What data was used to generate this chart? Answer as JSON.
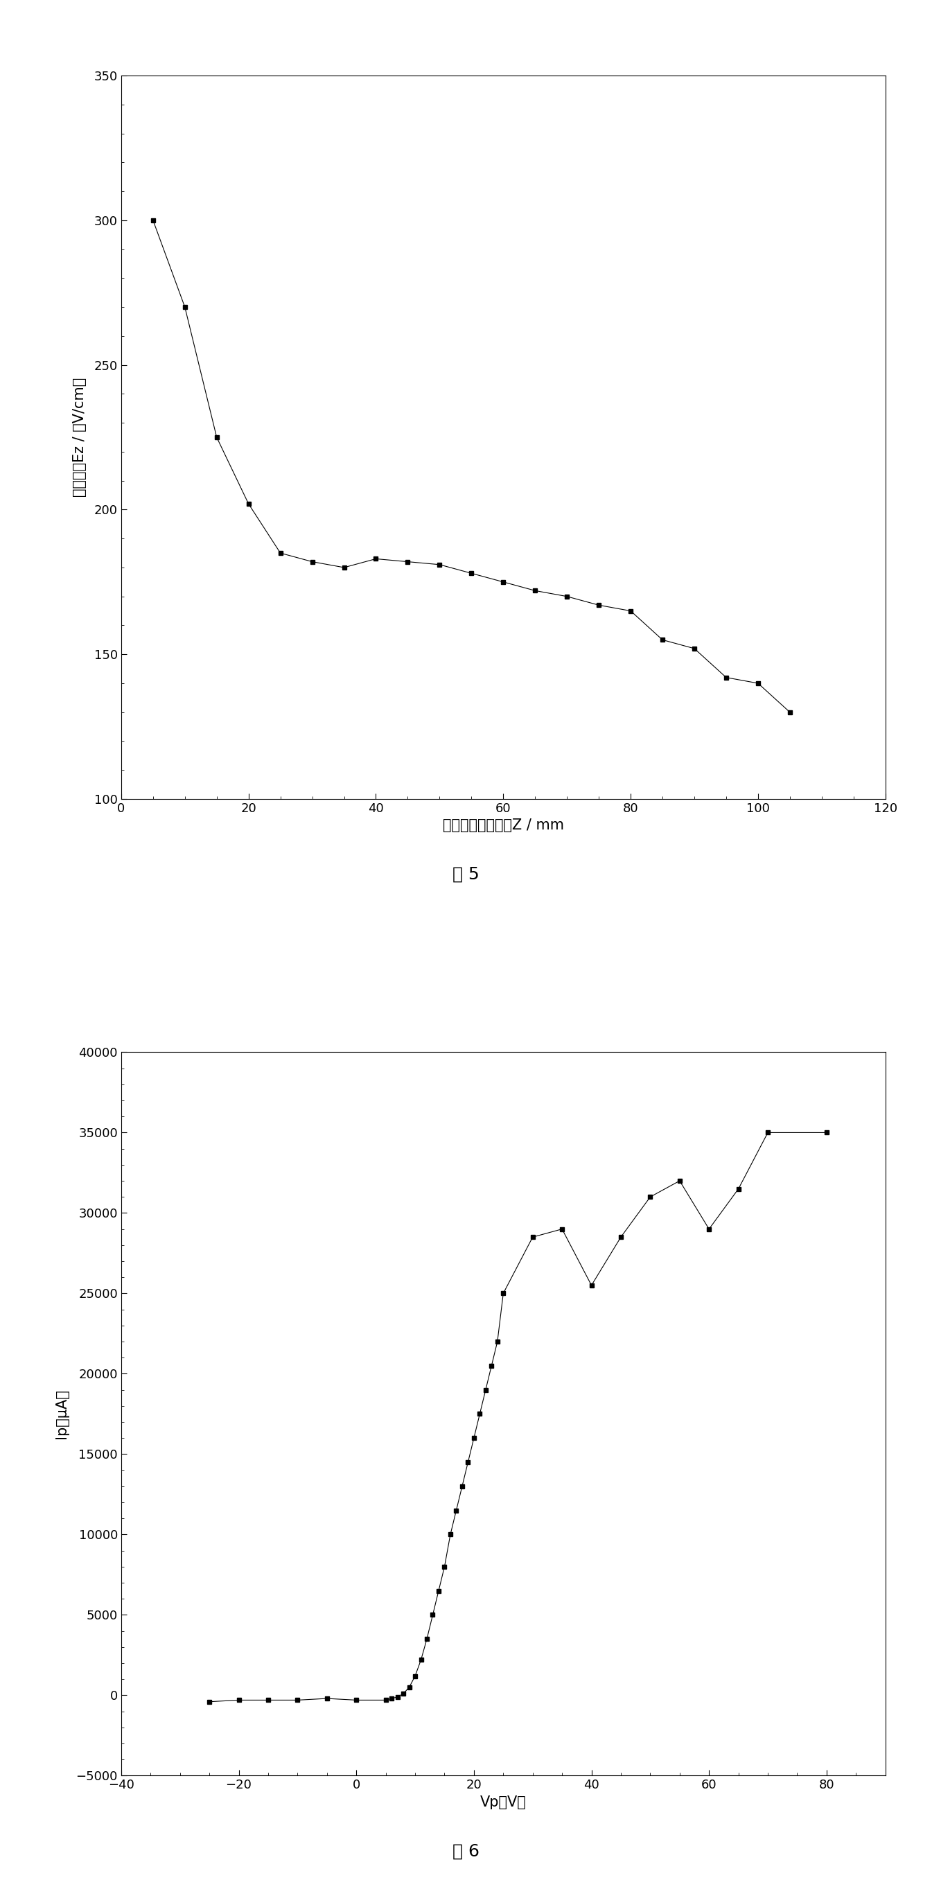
{
  "fig5": {
    "x": [
      5,
      10,
      15,
      20,
      25,
      30,
      35,
      40,
      45,
      50,
      55,
      60,
      65,
      70,
      75,
      80,
      85,
      90,
      95,
      100,
      105
    ],
    "y": [
      300,
      270,
      225,
      202,
      185,
      182,
      180,
      183,
      182,
      181,
      178,
      175,
      172,
      170,
      167,
      165,
      155,
      152,
      142,
      140,
      130
    ],
    "xlabel": "陶瓷窗正下方距离Z / mm",
    "ylabel": "电场强度Ez / （V/cm）",
    "xlim": [
      0,
      120
    ],
    "ylim": [
      100,
      350
    ],
    "xticks": [
      0,
      20,
      40,
      60,
      80,
      100,
      120
    ],
    "yticks": [
      100,
      150,
      200,
      250,
      300,
      350
    ],
    "caption": "图 5"
  },
  "fig6": {
    "x": [
      -25,
      -20,
      -15,
      -10,
      -5,
      0,
      5,
      6,
      7,
      8,
      9,
      10,
      11,
      12,
      13,
      14,
      15,
      16,
      17,
      18,
      19,
      20,
      21,
      22,
      23,
      24,
      25,
      30,
      35,
      40,
      45,
      50,
      55,
      60,
      65,
      70,
      80
    ],
    "y": [
      -400,
      -300,
      -300,
      -300,
      -200,
      -300,
      -300,
      -200,
      -100,
      100,
      500,
      1200,
      2200,
      3500,
      5000,
      6500,
      8000,
      10000,
      11500,
      13000,
      14500,
      16000,
      17500,
      19000,
      20500,
      22000,
      25000,
      28500,
      29000,
      25500,
      28500,
      31000,
      32000,
      29000,
      31500,
      35000,
      35000
    ],
    "xlabel": "Vp（V）",
    "ylabel": "Ip（μA）",
    "xlim": [
      -40,
      90
    ],
    "ylim": [
      -5000,
      40000
    ],
    "xticks": [
      -40,
      -20,
      0,
      20,
      40,
      60,
      80
    ],
    "yticks": [
      -5000,
      0,
      5000,
      10000,
      15000,
      20000,
      25000,
      30000,
      35000,
      40000
    ],
    "caption": "图 6"
  },
  "background_color": "#ffffff",
  "line_color": "#000000",
  "marker": "s",
  "markersize": 5,
  "linewidth": 0.8
}
